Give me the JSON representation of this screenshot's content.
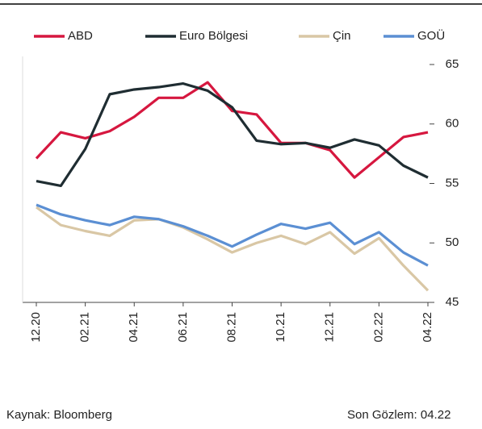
{
  "chart_data": {
    "type": "line",
    "categories": [
      "12.20",
      null,
      "02.21",
      null,
      "04.21",
      null,
      "06.21",
      null,
      "08.21",
      null,
      "10.21",
      null,
      "12.21",
      null,
      "02.22",
      null,
      "04.22"
    ],
    "series": [
      {
        "name": "ABD",
        "color": "#d6173f",
        "values": [
          57.1,
          59.3,
          58.8,
          59.4,
          60.6,
          62.2,
          62.2,
          63.5,
          61.1,
          60.8,
          58.4,
          58.4,
          57.8,
          55.5,
          57.2,
          58.9,
          59.3
        ]
      },
      {
        "name": "Euro Bölgesi",
        "color": "#1f2d32",
        "values": [
          55.2,
          54.8,
          57.9,
          62.5,
          62.9,
          63.1,
          63.4,
          62.8,
          61.4,
          58.6,
          58.3,
          58.4,
          58.0,
          58.7,
          58.2,
          56.5,
          55.5
        ]
      },
      {
        "name": "Çin",
        "color": "#d9c7a5",
        "values": [
          53.0,
          51.5,
          51.0,
          50.6,
          51.9,
          52.0,
          51.3,
          50.3,
          49.2,
          50.0,
          50.6,
          49.9,
          50.9,
          49.1,
          50.4,
          48.1,
          46.0
        ]
      },
      {
        "name": "GOÜ",
        "color": "#5b8fd3",
        "values": [
          53.2,
          52.4,
          51.9,
          51.5,
          52.2,
          52.0,
          51.4,
          50.6,
          49.7,
          50.7,
          51.6,
          51.2,
          51.7,
          49.9,
          50.9,
          49.2,
          48.1
        ]
      }
    ],
    "ylim": [
      45,
      65
    ],
    "yticks": [
      45,
      50,
      55,
      60,
      65
    ],
    "y_axis_side": "right",
    "legend": "top",
    "source": "Kaynak: Bloomberg",
    "last_observation": "Son Gözlem: 04.22"
  }
}
